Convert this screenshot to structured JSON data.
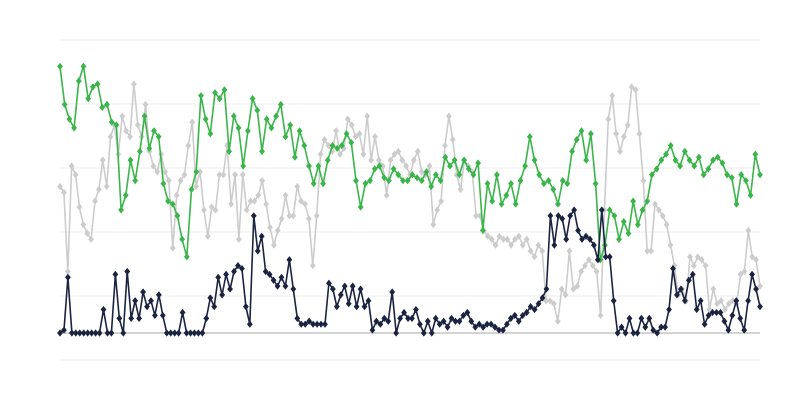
{
  "chart_data": {
    "type": "line",
    "title": "",
    "xlabel": "",
    "ylabel": "",
    "ylim": [
      -9.2,
      100
    ],
    "grid": true,
    "legend": "none",
    "marker": "diamond",
    "series": [
      {
        "color": "#cccccc",
        "values": [
          50,
          48,
          21,
          57,
          54,
          43,
          37,
          34,
          32,
          45,
          49,
          59,
          50,
          67,
          71,
          61,
          74,
          69,
          67,
          85,
          71,
          67,
          78,
          62,
          57,
          55,
          61,
          55,
          52,
          29,
          47,
          52,
          54,
          64,
          72,
          50,
          55,
          42,
          33,
          43,
          42,
          54,
          54,
          64,
          44,
          54,
          32,
          54,
          42,
          45,
          45,
          47,
          52,
          44,
          36,
          30,
          35,
          39,
          47,
          40,
          40,
          50,
          45,
          44,
          39,
          23,
          40,
          61,
          66,
          64,
          62,
          69,
          61,
          63,
          73,
          71,
          67,
          68,
          61,
          74,
          59,
          67,
          59,
          57,
          47,
          59,
          61,
          62,
          59,
          57,
          54,
          59,
          62,
          55,
          54,
          57,
          37,
          42,
          45,
          64,
          74,
          66,
          54,
          49,
          59,
          57,
          55,
          40,
          40,
          35,
          33,
          32,
          30,
          33,
          32,
          32,
          30,
          32,
          33,
          30,
          32,
          28,
          26,
          30,
          28,
          11,
          11,
          10,
          4,
          15,
          13,
          28,
          15,
          16,
          21,
          23,
          25,
          23,
          21,
          6,
          42,
          73,
          81,
          68,
          62,
          67,
          71,
          84,
          83,
          68,
          52,
          28,
          28,
          44,
          42,
          40,
          37,
          30,
          23,
          13,
          15,
          11,
          26,
          23,
          26,
          25,
          23,
          8,
          15,
          10,
          11,
          8,
          10,
          11,
          10,
          20,
          21,
          35,
          26,
          25,
          16
        ]
      },
      {
        "color": "#3ab54a",
        "values": [
          91,
          78,
          73,
          70,
          86,
          91,
          80,
          84,
          85,
          77,
          78,
          72,
          71,
          42,
          47,
          59,
          52,
          62,
          74,
          63,
          69,
          67,
          51,
          45,
          44,
          40,
          32,
          26,
          49,
          55,
          81,
          73,
          68,
          82,
          80,
          83,
          62,
          74,
          70,
          57,
          69,
          80,
          76,
          62,
          73,
          70,
          74,
          78,
          67,
          71,
          60,
          69,
          64,
          57,
          51,
          57,
          51,
          59,
          64,
          63,
          64,
          68,
          65,
          52,
          43,
          51,
          52,
          56,
          57,
          53,
          52,
          56,
          54,
          52,
          52,
          54,
          53,
          52,
          55,
          50,
          54,
          52,
          60,
          57,
          59,
          54,
          59,
          56,
          54,
          58,
          35,
          51,
          45,
          54,
          44,
          47,
          51,
          44,
          52,
          57,
          67,
          59,
          54,
          51,
          52,
          49,
          44,
          52,
          51,
          62,
          66,
          69,
          59,
          68,
          51,
          25,
          30,
          42,
          40,
          32,
          38,
          34,
          45,
          37,
          42,
          45,
          54,
          56,
          59,
          61,
          64,
          59,
          57,
          62,
          59,
          57,
          60,
          54,
          56,
          59,
          60,
          58,
          54,
          53,
          44,
          54,
          52,
          47,
          61,
          54
        ]
      },
      {
        "color": "#1a2340",
        "values": [
          0,
          1,
          19,
          0,
          0,
          0,
          0,
          0,
          0,
          0,
          0,
          8,
          0,
          0,
          20,
          5,
          0,
          21,
          5,
          11,
          5,
          14,
          9,
          11,
          6,
          13,
          6,
          0,
          0,
          0,
          0,
          7,
          0,
          0,
          0,
          0,
          0,
          5,
          12,
          9,
          19,
          13,
          20,
          15,
          21,
          23,
          22,
          9,
          3,
          40,
          28,
          33,
          21,
          20,
          18,
          16,
          19,
          16,
          25,
          15,
          5,
          3,
          3,
          4,
          3,
          3,
          3,
          3,
          17,
          15,
          9,
          13,
          16,
          10,
          16,
          9,
          15,
          9,
          11,
          1,
          4,
          3,
          5,
          4,
          14,
          0,
          5,
          7,
          5,
          5,
          8,
          3,
          0,
          4,
          0,
          5,
          3,
          4,
          2,
          5,
          4,
          4,
          6,
          7,
          4,
          2,
          3,
          2,
          3,
          3,
          2,
          1,
          1,
          3,
          5,
          6,
          4,
          6,
          7,
          9,
          8,
          10,
          12,
          15,
          40,
          30,
          40,
          39,
          32,
          40,
          42,
          35,
          32,
          33,
          32,
          30,
          25,
          42,
          26,
          26,
          11,
          0,
          2,
          0,
          5,
          0,
          0,
          5,
          2,
          5,
          1,
          0,
          2,
          2,
          8,
          22,
          13,
          15,
          11,
          18,
          20,
          8,
          11,
          3,
          6,
          7,
          7,
          7,
          4,
          1,
          6,
          11,
          5,
          1,
          11,
          20,
          15,
          9
        ]
      }
    ]
  }
}
